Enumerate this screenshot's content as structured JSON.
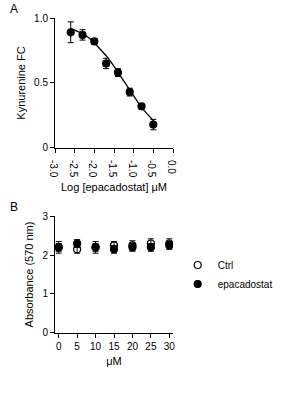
{
  "chart_data": [
    {
      "type": "scatter",
      "panel": "A",
      "x_label": "Log [epacadostat] μM",
      "y_label": "Kynurenine FC",
      "xlim": [
        -3,
        0
      ],
      "xticks": [
        {
          "value": -3,
          "label": "-3.0"
        },
        -2.5,
        {
          "value": -2,
          "label": "-2.0"
        },
        -1.5,
        {
          "value": -1,
          "label": "-1.0"
        },
        -0.5,
        {
          "value": 0,
          "label": "0.0"
        }
      ],
      "ylim": [
        0,
        1
      ],
      "yticks": [
        0,
        0.5,
        {
          "value": 1,
          "label": "1.0"
        }
      ],
      "grid": false,
      "series": [
        {
          "color": "#000000",
          "marker": "circle",
          "line_style": "none",
          "x": [
            -2.6,
            -2.3,
            -2.0,
            -1.7,
            -1.4,
            -1.1,
            -0.8,
            -0.5
          ],
          "values": [
            0.89,
            0.87,
            0.82,
            0.65,
            0.58,
            0.43,
            0.32,
            0.18
          ],
          "error": [
            0.08,
            0.04,
            0.02,
            0.04,
            0.03,
            0.03,
            0.02,
            0.04
          ]
        },
        {
          "color": "#000000",
          "marker": "none",
          "line_style": "solid",
          "x": [
            -2.6,
            -2.45,
            -2.3,
            -2.15,
            -2.0,
            -1.85,
            -1.7,
            -1.55,
            -1.4,
            -1.25,
            -1.1,
            -0.95,
            -0.8,
            -0.65,
            -0.5
          ],
          "values": [
            0.92,
            0.9,
            0.88,
            0.85,
            0.81,
            0.76,
            0.71,
            0.65,
            0.58,
            0.51,
            0.44,
            0.37,
            0.31,
            0.26,
            0.21
          ]
        }
      ]
    },
    {
      "type": "scatter",
      "panel": "B",
      "x_label": "μM",
      "y_label": "Absorbance (570 nm)",
      "xlim": [
        -1,
        31
      ],
      "xticks": [
        0,
        5,
        10,
        15,
        20,
        25,
        30
      ],
      "ylim": [
        0,
        3
      ],
      "yticks": [
        0,
        1,
        2,
        3
      ],
      "grid": false,
      "legend": "right",
      "series": [
        {
          "name": "Ctrl",
          "color": "#000000",
          "marker": "open circle",
          "line_style": "none",
          "x": [
            0,
            5,
            10,
            15,
            20,
            25,
            30
          ],
          "values": [
            2.2,
            2.15,
            2.2,
            2.25,
            2.25,
            2.3,
            2.3
          ],
          "error": [
            0.15,
            0.1,
            0.15,
            0.1,
            0.12,
            0.12,
            0.12
          ]
        },
        {
          "name": "epacadostat",
          "color": "#000000",
          "marker": "circle",
          "line_style": "none",
          "x": [
            0,
            5,
            10,
            15,
            20,
            25,
            30
          ],
          "values": [
            2.2,
            2.3,
            2.2,
            2.15,
            2.2,
            2.2,
            2.25
          ],
          "error": [
            0.1,
            0.1,
            0.1,
            0.1,
            0.1,
            0.1,
            0.1
          ]
        }
      ]
    }
  ]
}
